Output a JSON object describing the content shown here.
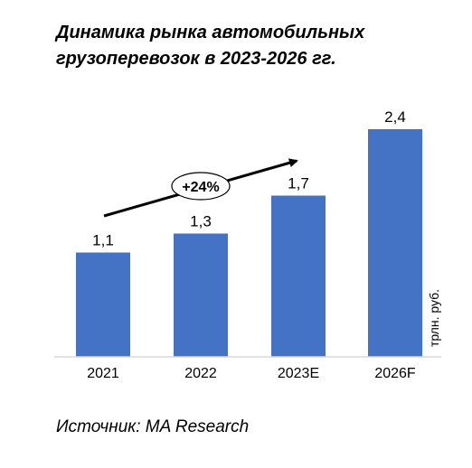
{
  "title_lines": [
    "Динамика рынка автомобильных",
    "грузоперевозок в 2023-2026 гг."
  ],
  "source": "Источник: MA Research",
  "annotation": "+24%",
  "chart_data": {
    "type": "bar",
    "categories": [
      "2021",
      "2022",
      "2023E",
      "2026F"
    ],
    "values": [
      1.1,
      1.3,
      1.7,
      2.4
    ],
    "value_labels": [
      "1,1",
      "1,3",
      "1,7",
      "2,4"
    ],
    "ylabel": "трлн. руб.",
    "ylim": [
      0,
      2.4
    ],
    "bar_color": "#4472C4",
    "grid": false
  }
}
